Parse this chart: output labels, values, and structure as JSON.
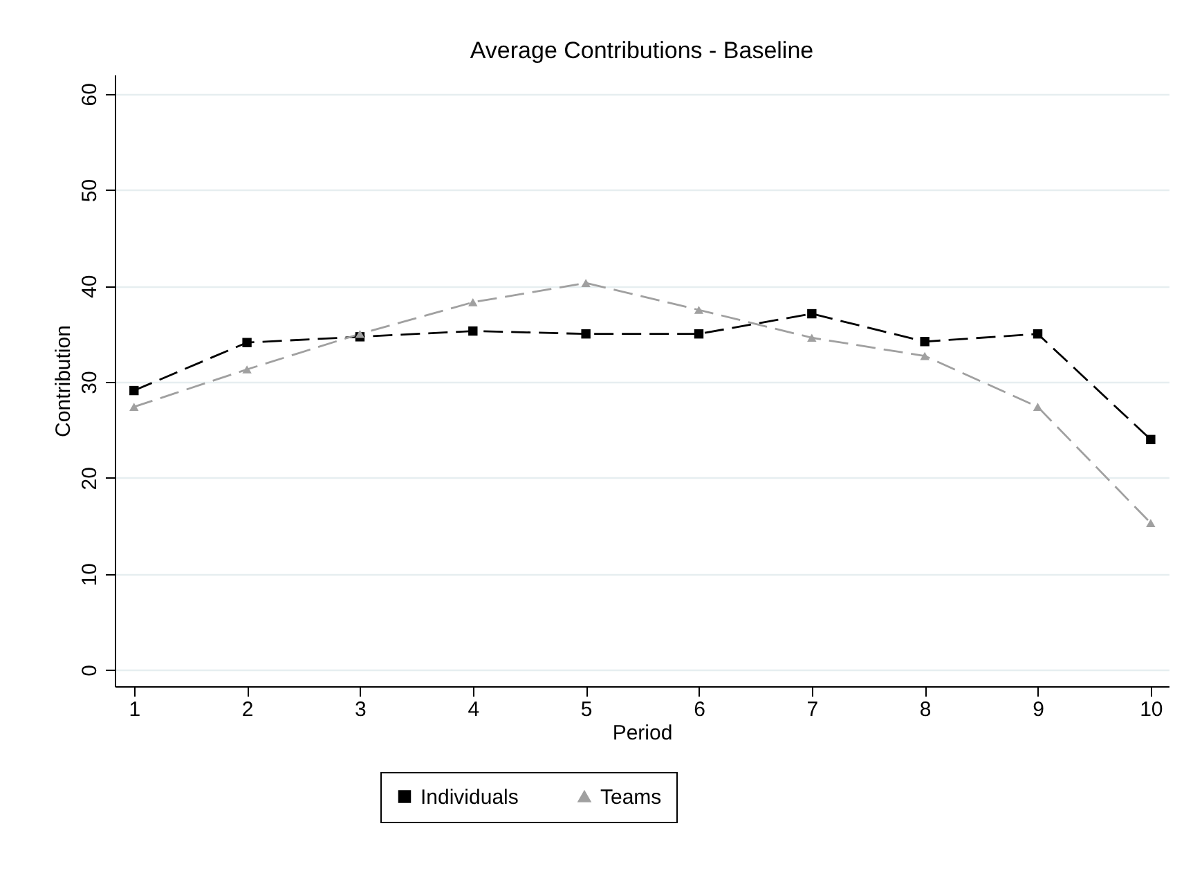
{
  "chart_data": {
    "type": "line",
    "title": "Average Contributions - Baseline",
    "xlabel": "Period",
    "ylabel": "Contribution",
    "x": [
      1,
      2,
      3,
      4,
      5,
      6,
      7,
      8,
      9,
      10
    ],
    "xlim": [
      0.83,
      10.16
    ],
    "xticks": [
      1,
      2,
      3,
      4,
      5,
      6,
      7,
      8,
      9,
      10
    ],
    "ylim": [
      -1.7,
      62
    ],
    "yticks": [
      0,
      10,
      20,
      30,
      40,
      50,
      60
    ],
    "grid": "y",
    "legend": "bottom",
    "line_style": "dashed",
    "series": [
      {
        "name": "Individuals",
        "color": "#000000",
        "marker": "square",
        "values": [
          29.1,
          34.1,
          34.7,
          35.3,
          35.0,
          35.0,
          37.1,
          34.2,
          35.0,
          24.0
        ]
      },
      {
        "name": "Teams",
        "color": "#a0a0a0",
        "marker": "triangle",
        "values": [
          27.4,
          31.3,
          35.0,
          38.3,
          40.3,
          37.5,
          34.6,
          32.7,
          27.4,
          15.3
        ]
      }
    ]
  }
}
